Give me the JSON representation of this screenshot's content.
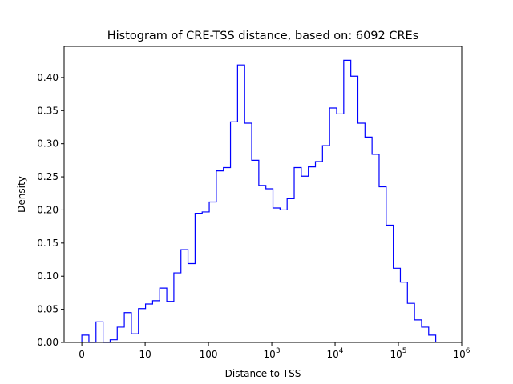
{
  "chart_data": {
    "type": "histogram",
    "title": "Histogram of CRE-TSS distance, based on: 6092 CREs",
    "xlabel": "Distance to TSS",
    "ylabel": "Density",
    "x_scale": "symlog",
    "x_linthresh": 10,
    "xlim": [
      -2.8,
      1000000
    ],
    "ylim": [
      0,
      0.447
    ],
    "bin_range": [
      0,
      389000
    ],
    "bin_count": 50,
    "values": [
      0.011,
      0,
      0.031,
      0,
      0.004,
      0.023,
      0.045,
      0.013,
      0.051,
      0.058,
      0.063,
      0.082,
      0.062,
      0.105,
      0.14,
      0.119,
      0.195,
      0.197,
      0.212,
      0.259,
      0.264,
      0.333,
      0.419,
      0.331,
      0.275,
      0.237,
      0.232,
      0.203,
      0.2,
      0.217,
      0.264,
      0.251,
      0.265,
      0.273,
      0.297,
      0.354,
      0.345,
      0.426,
      0.402,
      0.331,
      0.31,
      0.284,
      0.235,
      0.177,
      0.112,
      0.091,
      0.059,
      0.034,
      0.023,
      0.011
    ],
    "color": "#0000ff",
    "xticks": [
      {
        "value": 0,
        "label": "0"
      },
      {
        "value": 10,
        "label": "10"
      },
      {
        "value": 100,
        "label": "100"
      },
      {
        "value": 1000,
        "label": "10",
        "exp": "3"
      },
      {
        "value": 10000,
        "label": "10",
        "exp": "4"
      },
      {
        "value": 100000,
        "label": "10",
        "exp": "5"
      },
      {
        "value": 1000000,
        "label": "10",
        "exp": "6"
      }
    ],
    "yticks": [
      0,
      0.05,
      0.1,
      0.15,
      0.2,
      0.25,
      0.3,
      0.35,
      0.4
    ],
    "ytick_labels": [
      "0.00",
      "0.05",
      "0.10",
      "0.15",
      "0.20",
      "0.25",
      "0.30",
      "0.35",
      "0.40"
    ],
    "grid": false
  }
}
